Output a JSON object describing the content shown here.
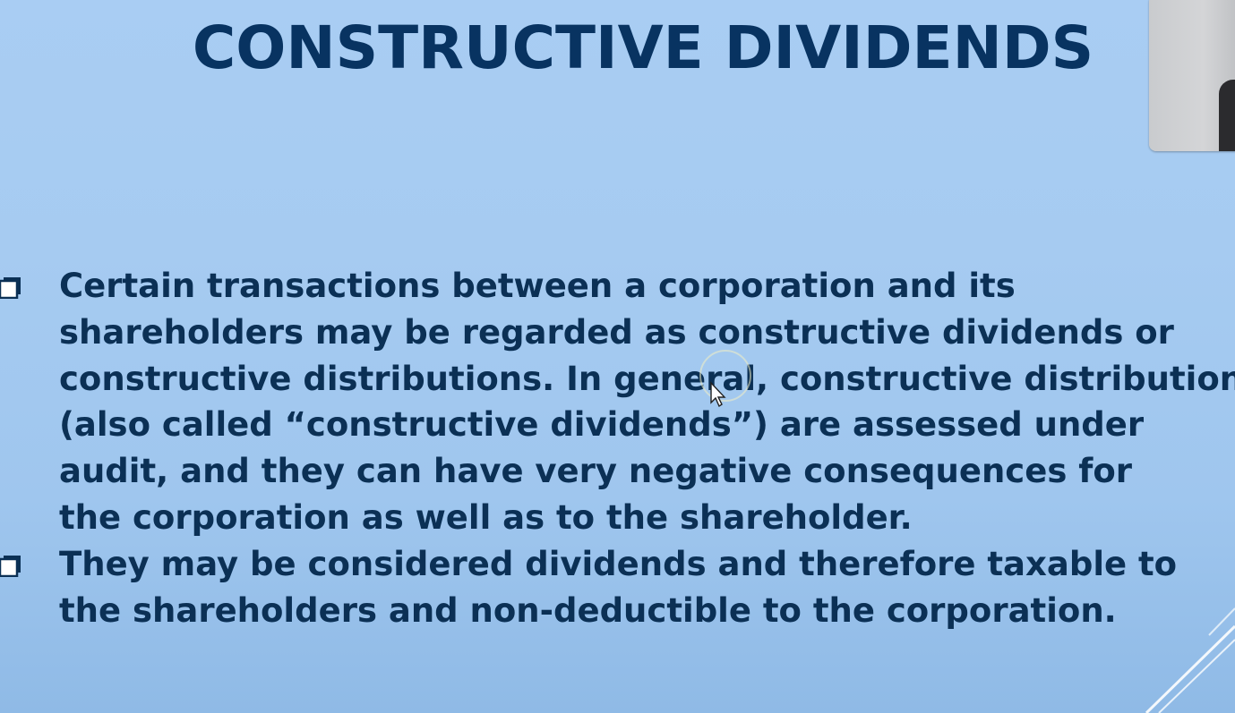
{
  "slide": {
    "title": "CONSTRUCTIVE DIVIDENDS",
    "bullets": [
      {
        "marker_icon": "checkbox-square-icon",
        "lines": [
          "Certain transactions between a corporation and its",
          "shareholders may be regarded as constructive dividends or",
          "constructive distributions. In general, constructive distributions",
          "(also called “constructive dividends”) are assessed under",
          "audit, and they can have very negative consequences for",
          "the corporation as well as to the shareholder."
        ]
      },
      {
        "marker_icon": "checkbox-square-icon",
        "lines": [
          "They may be considered dividends and therefore taxable to",
          "the shareholders and non-deductible to the corporation."
        ]
      }
    ]
  },
  "colors": {
    "title": "#083361",
    "text": "#0b3055",
    "background_top": "#a9cdf3",
    "background_bottom": "#8fbae6"
  },
  "overlays": {
    "webcam_icon": "presenter-webcam-thumbnail",
    "cursor_icon": "mouse-pointer-icon"
  }
}
